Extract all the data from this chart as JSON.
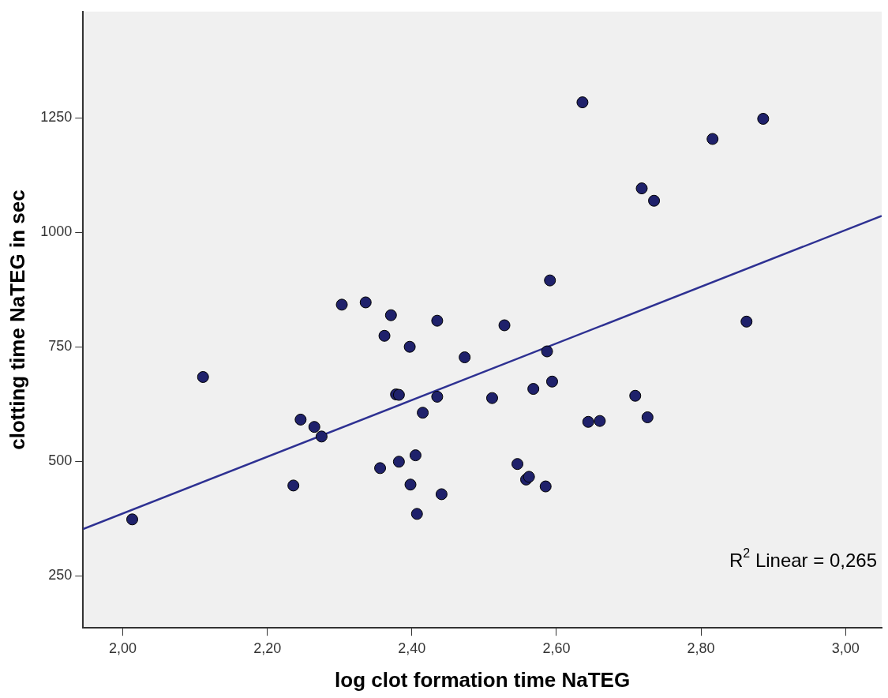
{
  "chart_data": {
    "type": "scatter",
    "xlabel": "log clot formation time NaTEG",
    "ylabel": "clotting time NaTEG in sec",
    "xlim": [
      1.945,
      3.05
    ],
    "ylim": [
      136,
      1482
    ],
    "xticks": [
      {
        "value": 2,
        "label": "2,00"
      },
      {
        "value": 2.2,
        "label": "2,20"
      },
      {
        "value": 2.4,
        "label": "2,40"
      },
      {
        "value": 2.6,
        "label": "2,60"
      },
      {
        "value": 2.8,
        "label": "2,80"
      },
      {
        "value": 3,
        "label": "3,00"
      }
    ],
    "yticks": [
      250,
      500,
      750,
      1000,
      1250
    ],
    "grid": false,
    "legend": false,
    "series": [
      {
        "marker": "circle",
        "color": "#1f216b",
        "x": [
          2.013,
          2.111,
          2.236,
          2.246,
          2.265,
          2.275,
          2.303,
          2.336,
          2.356,
          2.362,
          2.371,
          2.378,
          2.382,
          2.382,
          2.397,
          2.398,
          2.405,
          2.407,
          2.415,
          2.435,
          2.435,
          2.441,
          2.473,
          2.511,
          2.528,
          2.546,
          2.558,
          2.562,
          2.568,
          2.585,
          2.587,
          2.591,
          2.594,
          2.636,
          2.644,
          2.66,
          2.709,
          2.718,
          2.726,
          2.735,
          2.816,
          2.863,
          2.886
        ],
        "values": [
          373,
          684,
          447,
          591,
          575,
          554,
          842,
          847,
          485,
          774,
          819,
          646,
          645,
          499,
          750,
          449,
          513,
          385,
          606,
          807,
          641,
          428,
          727,
          638,
          797,
          494,
          460,
          466,
          658,
          445,
          740,
          895,
          674,
          1284,
          586,
          588,
          643,
          1096,
          596,
          1069,
          1204,
          805,
          1248
        ]
      },
      {
        "type": "line",
        "marker": "none",
        "color": "#2e3192",
        "x": [
          1.945,
          3.05
        ],
        "values": [
          352,
          1036
        ]
      }
    ],
    "annotations": [
      "R$^{2}$ Linear = 0,265"
    ]
  }
}
